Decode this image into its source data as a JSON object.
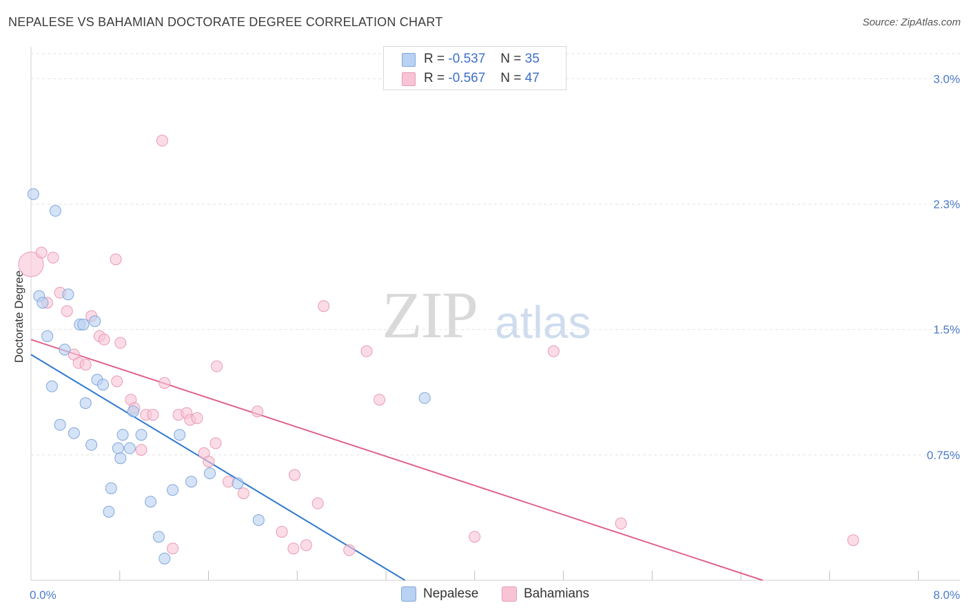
{
  "header": {
    "title": "NEPALESE VS BAHAMIAN DOCTORATE DEGREE CORRELATION CHART",
    "source": "Source: ZipAtlas.com"
  },
  "watermark": {
    "zip": "ZIP",
    "atlas": "atlas"
  },
  "legend": {
    "rows": [
      {
        "r_label": "R =",
        "r_value": "-0.537",
        "n_label": "N =",
        "n_value": "35"
      },
      {
        "r_label": "R =",
        "r_value": "-0.567",
        "n_label": "N =",
        "n_value": "47"
      }
    ]
  },
  "bottom_legend": {
    "nepalese": "Nepalese",
    "bahamians": "Bahamians"
  },
  "colors": {
    "nepalese_fill": "#b9d1f2",
    "nepalese_stroke": "#7fa6dd",
    "nepalese_line": "#2f78d0",
    "bahamians_fill": "#f8c4d5",
    "bahamians_stroke": "#e89ab3",
    "bahamians_line": "#e0618f",
    "tick": "#4a7ac9"
  },
  "chart_data": {
    "type": "scatter",
    "title": "NEPALESE VS BAHAMIAN DOCTORATE DEGREE CORRELATION CHART",
    "xlabel": "",
    "ylabel": "Doctorate Degree",
    "xlim": [
      0.0,
      8.0
    ],
    "ylim": [
      0.0,
      3.15
    ],
    "x_tick_labels": [
      "0.0%",
      "8.0%"
    ],
    "y_ticks": [
      0.75,
      1.5,
      2.25,
      3.0
    ],
    "y_tick_labels": [
      "0.75%",
      "1.5%",
      "2.3%",
      "3.0%"
    ],
    "grid": true,
    "series": [
      {
        "name": "Nepalese",
        "r": -0.537,
        "n": 35,
        "trend": {
          "x": [
            0.0,
            3.22
          ],
          "y": [
            1.35,
            0.0
          ]
        },
        "points": [
          [
            0.02,
            2.31
          ],
          [
            0.21,
            2.21
          ],
          [
            0.07,
            1.7
          ],
          [
            0.1,
            1.66
          ],
          [
            0.32,
            1.71
          ],
          [
            0.42,
            1.53
          ],
          [
            0.45,
            1.53
          ],
          [
            0.55,
            1.55
          ],
          [
            0.14,
            1.46
          ],
          [
            0.29,
            1.38
          ],
          [
            0.18,
            1.16
          ],
          [
            0.57,
            1.2
          ],
          [
            0.62,
            1.17
          ],
          [
            0.47,
            1.06
          ],
          [
            0.25,
            0.93
          ],
          [
            0.37,
            0.88
          ],
          [
            0.52,
            0.81
          ],
          [
            0.75,
            0.79
          ],
          [
            0.85,
            0.79
          ],
          [
            0.79,
            0.87
          ],
          [
            0.95,
            0.87
          ],
          [
            0.77,
            0.73
          ],
          [
            0.88,
            1.01
          ],
          [
            1.28,
            0.87
          ],
          [
            1.38,
            0.59
          ],
          [
            1.54,
            0.64
          ],
          [
            1.78,
            0.58
          ],
          [
            0.69,
            0.55
          ],
          [
            1.03,
            0.47
          ],
          [
            1.22,
            0.54
          ],
          [
            0.67,
            0.41
          ],
          [
            1.96,
            0.36
          ],
          [
            1.1,
            0.26
          ],
          [
            1.15,
            0.13
          ],
          [
            3.39,
            1.09
          ]
        ]
      },
      {
        "name": "Bahamians",
        "r": -0.567,
        "n": 47,
        "trend": {
          "x": [
            0.0,
            6.3
          ],
          "y": [
            1.44,
            0.0
          ]
        },
        "points": [
          [
            0.0,
            1.89
          ],
          [
            0.09,
            1.96
          ],
          [
            0.19,
            1.93
          ],
          [
            0.14,
            1.66
          ],
          [
            0.25,
            1.72
          ],
          [
            0.31,
            1.61
          ],
          [
            0.37,
            1.35
          ],
          [
            0.41,
            1.3
          ],
          [
            0.47,
            1.29
          ],
          [
            0.52,
            1.58
          ],
          [
            0.59,
            1.46
          ],
          [
            0.63,
            1.44
          ],
          [
            0.77,
            1.42
          ],
          [
            0.73,
            1.92
          ],
          [
            0.74,
            1.19
          ],
          [
            0.86,
            1.08
          ],
          [
            0.89,
            1.03
          ],
          [
            0.99,
            0.99
          ],
          [
            1.05,
            0.99
          ],
          [
            1.15,
            1.18
          ],
          [
            1.27,
            0.99
          ],
          [
            1.34,
            1.0
          ],
          [
            1.37,
            0.96
          ],
          [
            1.43,
            0.97
          ],
          [
            1.6,
            1.28
          ],
          [
            1.59,
            0.82
          ],
          [
            1.49,
            0.76
          ],
          [
            1.53,
            0.71
          ],
          [
            1.7,
            0.59
          ],
          [
            1.83,
            0.52
          ],
          [
            1.95,
            1.01
          ],
          [
            0.95,
            0.78
          ],
          [
            1.13,
            2.63
          ],
          [
            2.52,
            1.64
          ],
          [
            2.89,
            1.37
          ],
          [
            3.0,
            1.08
          ],
          [
            2.27,
            0.63
          ],
          [
            2.47,
            0.46
          ],
          [
            4.5,
            1.37
          ],
          [
            2.16,
            0.29
          ],
          [
            2.26,
            0.19
          ],
          [
            2.37,
            0.21
          ],
          [
            2.74,
            0.18
          ],
          [
            3.82,
            0.26
          ],
          [
            1.22,
            0.19
          ],
          [
            5.08,
            0.34
          ],
          [
            7.08,
            0.24
          ]
        ]
      }
    ]
  }
}
